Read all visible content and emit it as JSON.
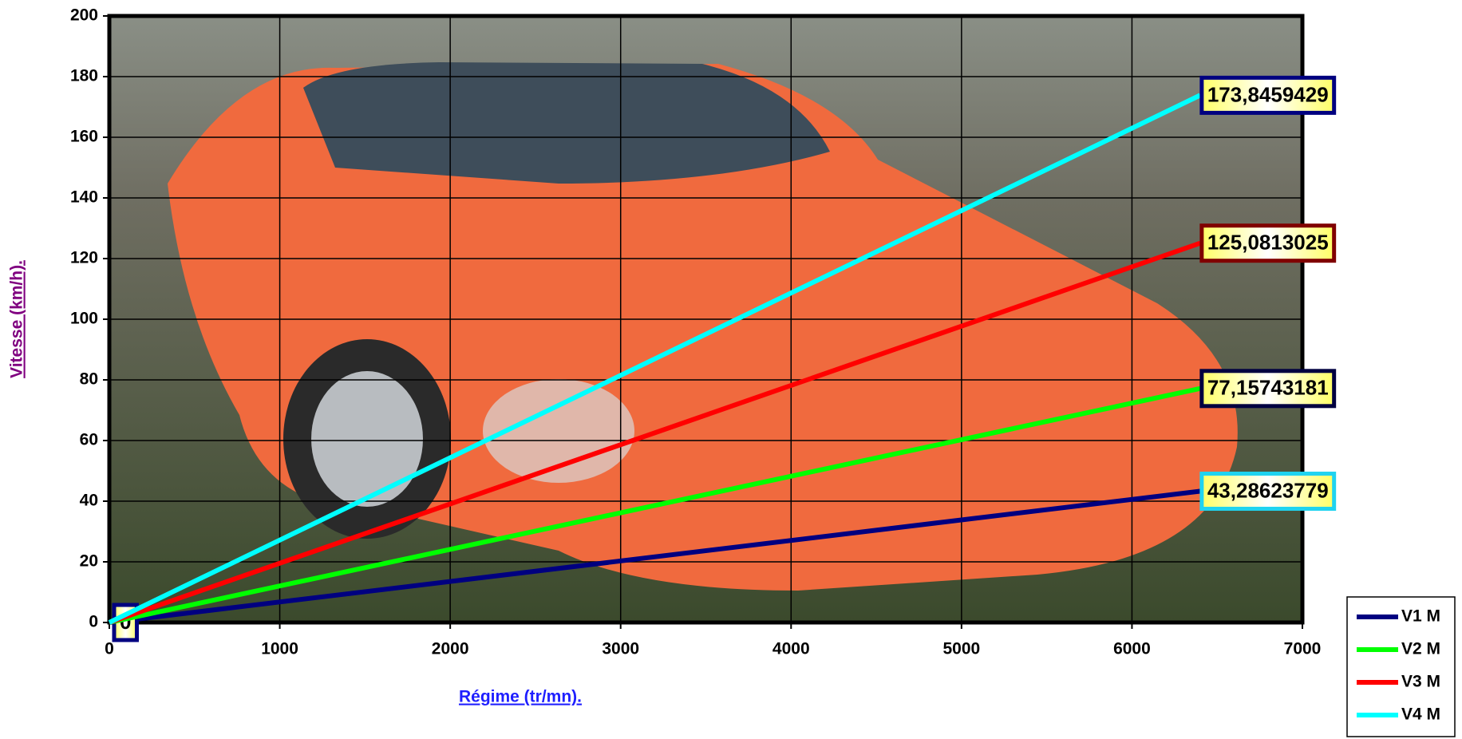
{
  "chart_data": {
    "type": "line",
    "x_label": "Régime (tr/mn).",
    "y_label": "Vitesse (km/h).",
    "xlim": [
      0,
      7000
    ],
    "xticks": [
      0,
      1000,
      2000,
      3000,
      4000,
      5000,
      6000,
      7000
    ],
    "ylim": [
      0,
      200
    ],
    "yticks": [
      0,
      20,
      40,
      60,
      80,
      100,
      120,
      140,
      160,
      180,
      200
    ],
    "grid": true,
    "legend": "bottom-right",
    "x": [
      0,
      6400
    ],
    "series": [
      {
        "name": "V1 M",
        "color": "#000080",
        "values": [
          0,
          43.28623779
        ],
        "value_labels": [
          "0",
          "43,28623779"
        ]
      },
      {
        "name": "V2 M",
        "color": "#00ff00",
        "values": [
          0,
          77.15743181
        ],
        "value_labels": [
          null,
          "77,15743181"
        ]
      },
      {
        "name": "V3 M",
        "color": "#ff0000",
        "values": [
          0,
          125.0813025
        ],
        "value_labels": [
          null,
          "125,0813025"
        ]
      },
      {
        "name": "V4 M",
        "color": "#00ffff",
        "values": [
          0,
          173.8459429
        ],
        "value_labels": [
          null,
          "173,8459429"
        ]
      }
    ]
  }
}
